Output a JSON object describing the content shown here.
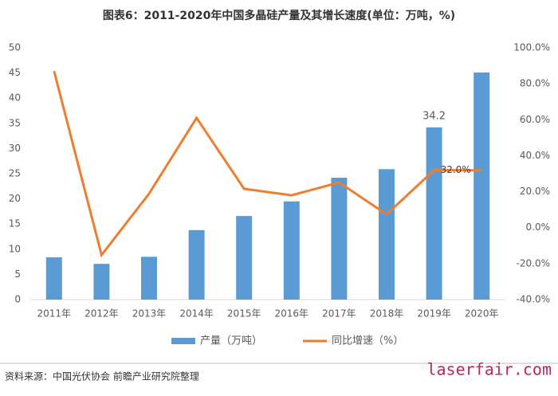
{
  "chart_data": {
    "type": "bar-line",
    "title": "图表6：2011-2020年中国多晶硅产量及其增长速度(单位：万吨，%)",
    "categories": [
      "2011年",
      "2012年",
      "2013年",
      "2014年",
      "2015年",
      "2016年",
      "2017年",
      "2018年",
      "2019年",
      "2020年"
    ],
    "series": [
      {
        "name": "产量（万吨）",
        "type": "bar",
        "color": "#5b9bd5",
        "values": [
          8.4,
          7.1,
          8.5,
          13.8,
          16.6,
          19.5,
          24.2,
          25.9,
          34.2,
          45.1
        ],
        "value_labels": [
          null,
          null,
          null,
          null,
          null,
          null,
          null,
          null,
          "34.2",
          null
        ]
      },
      {
        "name": "同比增速（%）",
        "type": "line",
        "axis": "y2",
        "color": "#ed7d31",
        "values": [
          87.1,
          -15.2,
          18.9,
          61.0,
          21.6,
          18.0,
          25.1,
          7.4,
          32.0,
          31.8
        ],
        "value_labels": [
          null,
          null,
          null,
          null,
          null,
          null,
          null,
          null,
          "32.0%",
          null
        ]
      }
    ],
    "ylim": [
      0,
      50
    ],
    "yticks": [
      0,
      5,
      10,
      15,
      20,
      25,
      30,
      35,
      40,
      45,
      50
    ],
    "y2lim": [
      -40,
      100
    ],
    "y2ticks": [
      {
        "value": -40,
        "label": "-40.0%"
      },
      {
        "value": -20,
        "label": "-20.0%"
      },
      {
        "value": 0,
        "label": "0.0%"
      },
      {
        "value": 20,
        "label": "20.0%"
      },
      {
        "value": 40,
        "label": "40.0%"
      },
      {
        "value": 60,
        "label": "60.0%"
      },
      {
        "value": 80,
        "label": "80.0%"
      },
      {
        "value": 100,
        "label": "100.0%"
      }
    ],
    "grid": false,
    "source": "资料来源：中国光伏协会 前瞻产业研究院整理",
    "watermark": "laserfair.com"
  }
}
